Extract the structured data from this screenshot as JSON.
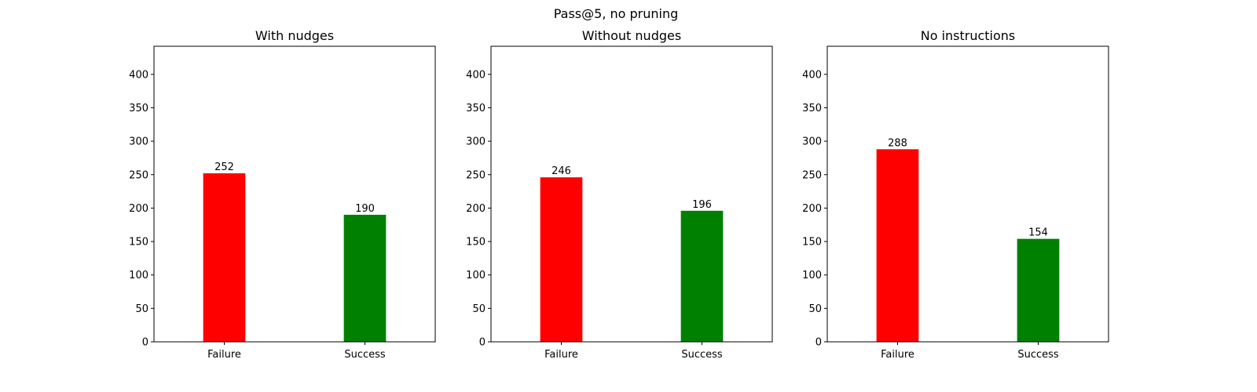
{
  "figure": {
    "suptitle": "Pass@5, no pruning"
  },
  "colors": {
    "failure": "#ff0000",
    "success": "#008000",
    "axes": "#000000",
    "background": "#ffffff"
  },
  "chart_data": [
    {
      "type": "bar",
      "title": "With nudges",
      "categories": [
        "Failure",
        "Success"
      ],
      "values": [
        252,
        190
      ],
      "bar_colors": [
        "#ff0000",
        "#008000"
      ],
      "ylim": [
        0,
        442
      ],
      "yticks": [
        0,
        50,
        100,
        150,
        200,
        250,
        300,
        350,
        400
      ],
      "xlabel": "",
      "ylabel": "",
      "grid": false
    },
    {
      "type": "bar",
      "title": "Without nudges",
      "categories": [
        "Failure",
        "Success"
      ],
      "values": [
        246,
        196
      ],
      "bar_colors": [
        "#ff0000",
        "#008000"
      ],
      "ylim": [
        0,
        442
      ],
      "yticks": [
        0,
        50,
        100,
        150,
        200,
        250,
        300,
        350,
        400
      ],
      "xlabel": "",
      "ylabel": "",
      "grid": false
    },
    {
      "type": "bar",
      "title": "No instructions",
      "categories": [
        "Failure",
        "Success"
      ],
      "values": [
        288,
        154
      ],
      "bar_colors": [
        "#ff0000",
        "#008000"
      ],
      "ylim": [
        0,
        442
      ],
      "yticks": [
        0,
        50,
        100,
        150,
        200,
        250,
        300,
        350,
        400
      ],
      "xlabel": "",
      "ylabel": "",
      "grid": false
    }
  ]
}
